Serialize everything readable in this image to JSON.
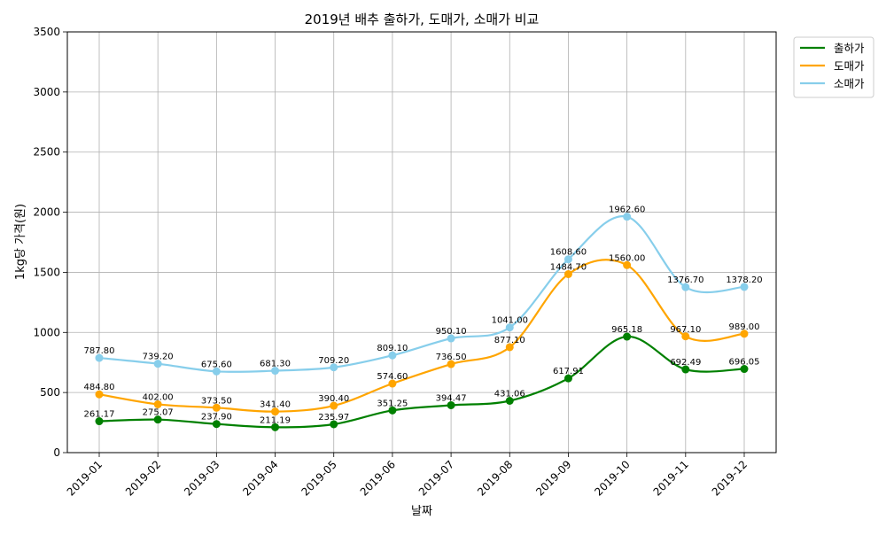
{
  "chart_data": {
    "type": "line",
    "title": "2019년 배추 출하가, 도매가, 소매가 비교",
    "xlabel": "날짜",
    "ylabel": "1kg당 가격(원)",
    "categories": [
      "2019-01",
      "2019-02",
      "2019-03",
      "2019-04",
      "2019-05",
      "2019-06",
      "2019-07",
      "2019-08",
      "2019-09",
      "2019-10",
      "2019-11",
      "2019-12"
    ],
    "ylim": [
      0,
      3500
    ],
    "yticks": [
      0,
      500,
      1000,
      1500,
      2000,
      2500,
      3000,
      3500
    ],
    "grid": true,
    "legend_position": "outside-top-right",
    "series": [
      {
        "name": "출하가",
        "color": "#008000",
        "values": [
          261.17,
          275.07,
          237.9,
          211.19,
          235.97,
          351.25,
          394.47,
          431.06,
          617.91,
          965.18,
          692.49,
          696.05
        ],
        "labels": [
          "261.17",
          "275.07",
          "237.90",
          "211.19",
          "235.97",
          "351.25",
          "394.47",
          "431.06",
          "617.91",
          "965.18",
          "692.49",
          "696.05"
        ]
      },
      {
        "name": "도매가",
        "color": "#FFA500",
        "values": [
          484.8,
          402.0,
          373.5,
          341.4,
          390.4,
          574.6,
          736.5,
          877.1,
          1484.7,
          1560.0,
          967.1,
          989.0
        ],
        "labels": [
          "484.80",
          "402.00",
          "373.50",
          "341.40",
          "390.40",
          "574.60",
          "736.50",
          "877.10",
          "1484.70",
          "1560.00",
          "967.10",
          "989.00"
        ]
      },
      {
        "name": "소매가",
        "color": "#87CEEB",
        "values": [
          787.8,
          739.2,
          675.6,
          681.3,
          709.2,
          809.1,
          950.1,
          1041.0,
          1608.6,
          1962.6,
          1376.7,
          1378.2
        ],
        "labels": [
          "787.80",
          "739.20",
          "675.60",
          "681.30",
          "709.20",
          "809.10",
          "950.10",
          "1041.00",
          "1608.60",
          "1962.60",
          "1376.70",
          "1378.20"
        ]
      }
    ]
  }
}
